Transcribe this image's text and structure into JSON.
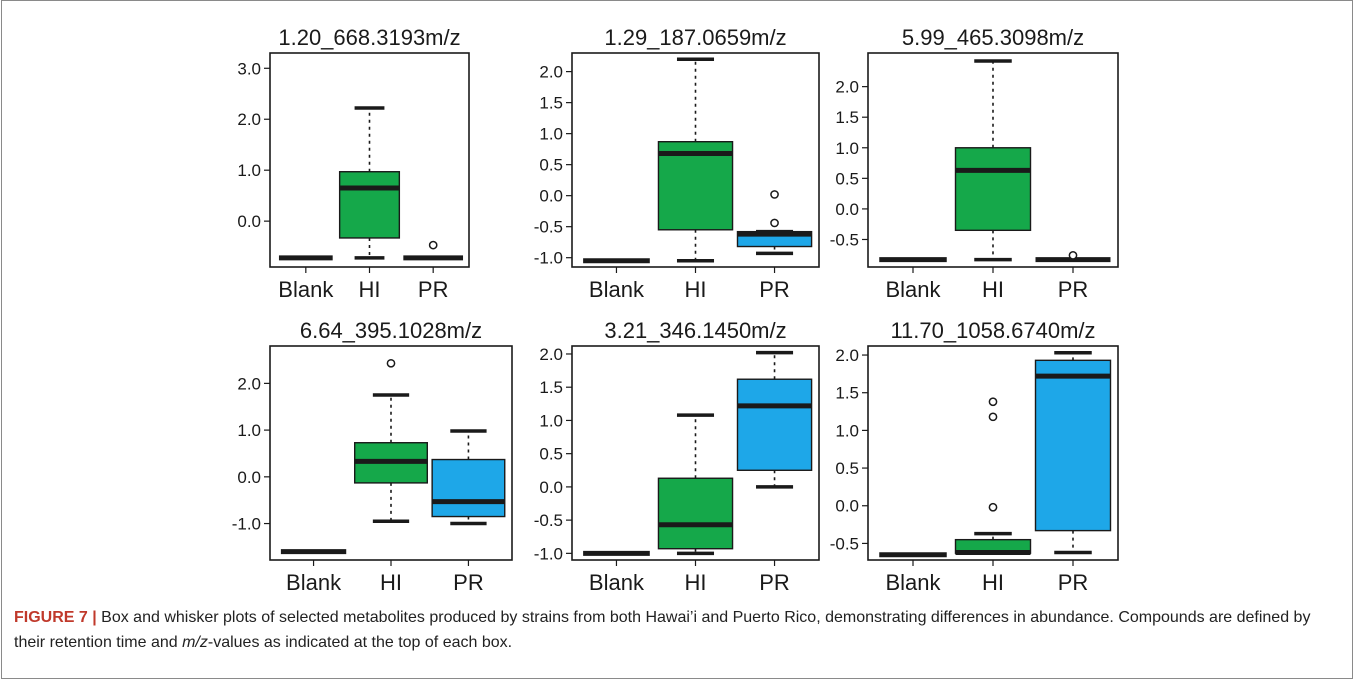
{
  "colors": {
    "blank": "#2b2b2b",
    "HI": "#15a84a",
    "PR": "#1ea7e8",
    "median": "#1a1a1a",
    "axis": "#1a1a1a"
  },
  "chart_data": [
    {
      "type": "box",
      "title": "1.20_668.3193m/z",
      "categories": [
        "Blank",
        "HI",
        "PR"
      ],
      "ylim": [
        -0.9,
        3.3
      ],
      "yticks": [
        -0.0,
        1.0,
        2.0,
        3.0
      ],
      "ytick_labels": [
        "0.0",
        "1.0",
        "2.0",
        "3.0"
      ],
      "boxes": [
        {
          "name": "Blank",
          "min": -0.72,
          "q1": -0.72,
          "median": -0.72,
          "q3": -0.72,
          "max": -0.72,
          "outliers": []
        },
        {
          "name": "HI",
          "min": -0.72,
          "q1": -0.33,
          "median": 0.65,
          "q3": 0.97,
          "max": 2.22,
          "outliers": []
        },
        {
          "name": "PR",
          "min": -0.72,
          "q1": -0.72,
          "median": -0.72,
          "q3": -0.72,
          "max": -0.72,
          "outliers": [
            -0.47
          ]
        }
      ]
    },
    {
      "type": "box",
      "title": "1.29_187.0659m/z",
      "categories": [
        "Blank",
        "HI",
        "PR"
      ],
      "ylim": [
        -1.15,
        2.3
      ],
      "yticks": [
        -1.0,
        -0.5,
        0.0,
        0.5,
        1.0,
        1.5,
        2.0
      ],
      "ytick_labels": [
        "-1.0",
        "-0.5",
        "0.0",
        "0.5",
        "1.0",
        "1.5",
        "2.0"
      ],
      "boxes": [
        {
          "name": "Blank",
          "min": -1.05,
          "q1": -1.05,
          "median": -1.05,
          "q3": -1.05,
          "max": -1.05,
          "outliers": []
        },
        {
          "name": "HI",
          "min": -1.05,
          "q1": -0.55,
          "median": 0.68,
          "q3": 0.87,
          "max": 2.2,
          "outliers": []
        },
        {
          "name": "PR",
          "min": -0.93,
          "q1": -0.82,
          "median": -0.62,
          "q3": -0.58,
          "max": -0.58,
          "outliers": [
            0.02,
            -0.44
          ]
        }
      ]
    },
    {
      "type": "box",
      "title": "5.99_465.3098m/z",
      "categories": [
        "Blank",
        "HI",
        "PR"
      ],
      "ylim": [
        -0.95,
        2.55
      ],
      "yticks": [
        -0.5,
        0.0,
        0.5,
        1.0,
        1.5,
        2.0
      ],
      "ytick_labels": [
        "-0.5",
        "0.0",
        "0.5",
        "1.0",
        "1.5",
        "2.0"
      ],
      "boxes": [
        {
          "name": "Blank",
          "min": -0.83,
          "q1": -0.83,
          "median": -0.83,
          "q3": -0.83,
          "max": -0.83,
          "outliers": []
        },
        {
          "name": "HI",
          "min": -0.83,
          "q1": -0.35,
          "median": 0.63,
          "q3": 1.0,
          "max": 2.42,
          "outliers": []
        },
        {
          "name": "PR",
          "min": -0.83,
          "q1": -0.83,
          "median": -0.83,
          "q3": -0.83,
          "max": -0.83,
          "outliers": [
            -0.76
          ]
        }
      ]
    },
    {
      "type": "box",
      "title": "6.64_395.1028m/z",
      "categories": [
        "Blank",
        "HI",
        "PR"
      ],
      "ylim": [
        -1.78,
        2.8
      ],
      "yticks": [
        -1.0,
        0.0,
        1.0,
        2.0
      ],
      "ytick_labels": [
        "-1.0",
        "0.0",
        "1.0",
        "2.0"
      ],
      "boxes": [
        {
          "name": "Blank",
          "min": -1.6,
          "q1": -1.6,
          "median": -1.6,
          "q3": -1.6,
          "max": -1.6,
          "outliers": []
        },
        {
          "name": "HI",
          "min": -0.95,
          "q1": -0.13,
          "median": 0.33,
          "q3": 0.73,
          "max": 1.75,
          "outliers": [
            2.43
          ]
        },
        {
          "name": "PR",
          "min": -1.0,
          "q1": -0.85,
          "median": -0.53,
          "q3": 0.37,
          "max": 0.98,
          "outliers": []
        }
      ]
    },
    {
      "type": "box",
      "title": "3.21_346.1450m/z",
      "categories": [
        "Blank",
        "HI",
        "PR"
      ],
      "ylim": [
        -1.1,
        2.12
      ],
      "yticks": [
        -1.0,
        -0.5,
        0.0,
        0.5,
        1.0,
        1.5,
        2.0
      ],
      "ytick_labels": [
        "-1.0",
        "-0.5",
        "0.0",
        "0.5",
        "1.0",
        "1.5",
        "2.0"
      ],
      "boxes": [
        {
          "name": "Blank",
          "min": -1.0,
          "q1": -1.0,
          "median": -1.0,
          "q3": -1.0,
          "max": -1.0,
          "outliers": []
        },
        {
          "name": "HI",
          "min": -1.0,
          "q1": -0.93,
          "median": -0.57,
          "q3": 0.13,
          "max": 1.08,
          "outliers": []
        },
        {
          "name": "PR",
          "min": 0.0,
          "q1": 0.25,
          "median": 1.22,
          "q3": 1.62,
          "max": 2.02,
          "outliers": []
        }
      ]
    },
    {
      "type": "box",
      "title": "11.70_1058.6740m/z",
      "categories": [
        "Blank",
        "HI",
        "PR"
      ],
      "ylim": [
        -0.72,
        2.12
      ],
      "yticks": [
        -0.5,
        0.0,
        0.5,
        1.0,
        1.5,
        2.0
      ],
      "ytick_labels": [
        "-0.5",
        "0.0",
        "0.5",
        "1.0",
        "1.5",
        "2.0"
      ],
      "boxes": [
        {
          "name": "Blank",
          "min": -0.65,
          "q1": -0.65,
          "median": -0.65,
          "q3": -0.65,
          "max": -0.65,
          "outliers": []
        },
        {
          "name": "HI",
          "min": -0.63,
          "q1": -0.63,
          "median": -0.62,
          "q3": -0.45,
          "max": -0.37,
          "outliers": [
            1.38,
            1.18,
            -0.02
          ]
        },
        {
          "name": "PR",
          "min": -0.62,
          "q1": -0.33,
          "median": 1.72,
          "q3": 1.93,
          "max": 2.03,
          "outliers": []
        }
      ]
    }
  ],
  "caption": {
    "lead": "FIGURE 7 |",
    "part1": " Box and whisker plots of selected metabolites produced by strains from both Hawai’i and Puerto Rico, demonstrating differences in abundance. Compounds are defined by their retention time and ",
    "mz": "m/z",
    "part2": "-values as indicated at the top of each box."
  }
}
